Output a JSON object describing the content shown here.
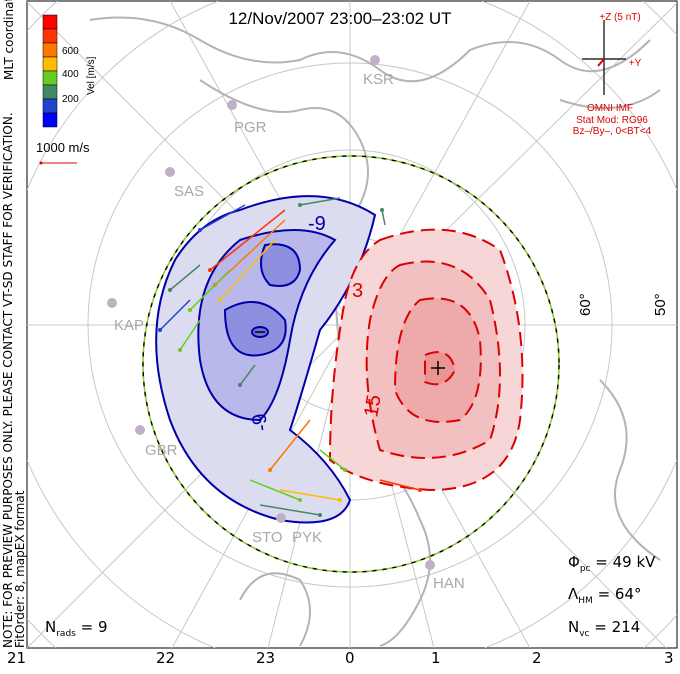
{
  "title": "12/Nov/2007 23:00–23:02 UT",
  "side_notes": {
    "coords": "MLT coordinates",
    "note": "NOTE: FOR PREVIEW PURPOSES ONLY. PLEASE CONTACT VT-SD STAFF FOR VERIFICATION.",
    "fit": "FitOrder: 8, mapEX format"
  },
  "colorbar": {
    "label": "Vel [m/s]",
    "ticks": [
      "600",
      "400",
      "200"
    ],
    "colors": [
      "#ff0000",
      "#ff3300",
      "#ff7700",
      "#ffbb00",
      "#66cc22",
      "#448866",
      "#2244cc",
      "#0000ff"
    ]
  },
  "reference_vector": "1000 m/s",
  "imf": {
    "z_label": "+Z (5 nT)",
    "y_label": "+Y",
    "source": "OMNI IMF",
    "model": "Stat Mod: RG96",
    "condition": "Bz–/By–, 0<BT<4",
    "color": "#dd0000"
  },
  "latitude_labels": [
    "60°",
    "50°"
  ],
  "radars": [
    "KSR",
    "PGR",
    "SAS",
    "KAP",
    "GBR",
    "STO",
    "PYK",
    "HAN"
  ],
  "contour_labels": [
    "-9",
    "3",
    "15",
    "-9"
  ],
  "stats": {
    "nrads_sym": "N",
    "nrads_sub": "rads",
    "nrads_val": "= 9",
    "phi_sym": "Φ",
    "phi_sub": "pc",
    "phi_val": "= 49 kV",
    "lam_sym": "Λ",
    "lam_sub": "HM",
    "lam_val": "= 64°",
    "nvc_sym": "N",
    "nvc_sub": "vc",
    "nvc_val": "= 214"
  },
  "mlt_labels": [
    "21",
    "22",
    "23",
    "0",
    "1",
    "2",
    "3"
  ]
}
